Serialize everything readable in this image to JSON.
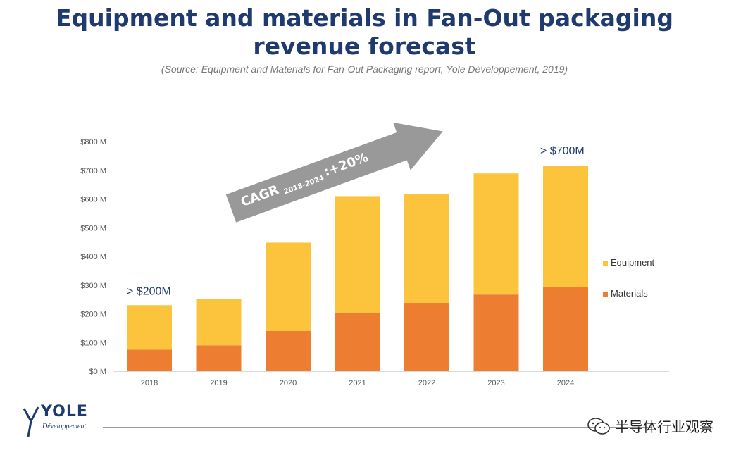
{
  "title": "Equipment and materials in Fan-Out packaging revenue forecast",
  "subtitle": "(Source: Equipment and Materials for Fan-Out Packaging report, Yole Développement, 2019)",
  "chart_data": {
    "type": "bar",
    "stacked": true,
    "categories": [
      "2018",
      "2019",
      "2020",
      "2021",
      "2022",
      "2023",
      "2024"
    ],
    "series": [
      {
        "name": "Materials",
        "color": "#ed7d31",
        "values": [
          75,
          90,
          140,
          202,
          238,
          267,
          292
        ]
      },
      {
        "name": "Equipment",
        "color": "#fbc43c",
        "values": [
          155,
          162,
          308,
          408,
          379,
          422,
          424
        ]
      }
    ],
    "ylim": [
      0,
      800
    ],
    "yticks": [
      "$0 M",
      "$100 M",
      "$200 M",
      "$300 M",
      "$400 M",
      "$500 M",
      "$600 M",
      "$700 M",
      "$800 M"
    ],
    "legend_position": "right",
    "annotations": {
      "start_label": "> $200M",
      "end_label": "> $700M",
      "cagr_main": "CAGR",
      "cagr_sub": "2018-2024",
      "cagr_value": ":+20%"
    }
  },
  "logo": {
    "name": "YOLE",
    "sub": "Développement"
  },
  "watermark": "半导体行业观察"
}
